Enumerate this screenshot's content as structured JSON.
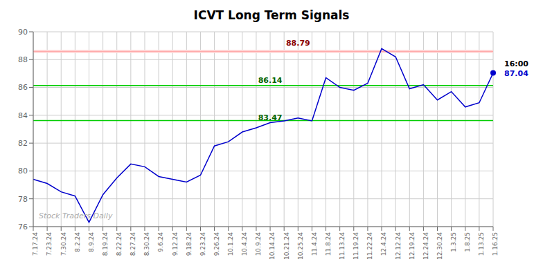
{
  "chart_data": {
    "type": "line",
    "title": "ICVT Long Term Signals",
    "categories": [
      "7.17.24",
      "7.23.24",
      "7.30.24",
      "8.2.24",
      "8.9.24",
      "8.19.24",
      "8.22.24",
      "8.27.24",
      "8.30.24",
      "9.6.24",
      "9.12.24",
      "9.18.24",
      "9.23.24",
      "9.26.24",
      "10.1.24",
      "10.4.24",
      "10.9.24",
      "10.14.24",
      "10.21.24",
      "10.25.24",
      "11.4.24",
      "11.8.24",
      "11.13.24",
      "11.19.24",
      "11.22.24",
      "12.4.24",
      "12.12.24",
      "12.19.24",
      "12.24.24",
      "12.30.24",
      "1.3.25",
      "1.8.25",
      "1.13.25",
      "1.16.25"
    ],
    "values": [
      79.4,
      79.1,
      78.5,
      78.2,
      76.3,
      78.3,
      79.5,
      80.5,
      80.3,
      79.6,
      79.4,
      79.2,
      79.7,
      81.8,
      82.1,
      82.8,
      83.1,
      83.47,
      83.6,
      83.8,
      83.6,
      86.7,
      86.0,
      85.8,
      86.3,
      88.79,
      88.2,
      85.9,
      86.2,
      85.1,
      85.7,
      84.6,
      84.9,
      87.04
    ],
    "color": "#0000cc",
    "marker": "last",
    "ylim": [
      76,
      90
    ],
    "yticks": [
      76,
      78,
      80,
      82,
      84,
      86,
      88,
      90
    ],
    "grid": true,
    "reference_bands": [
      {
        "range": [
          88.47,
          88.71
        ],
        "color": "#ffdddd"
      }
    ],
    "reference_lines": [
      {
        "value": 88.59,
        "color": "#ffaaaa"
      },
      {
        "value": 86.14,
        "color": "#00cc00"
      },
      {
        "value": 83.62,
        "color": "#00cc00"
      }
    ],
    "annotations": [
      {
        "text": "88.79",
        "x": "10.25.24",
        "y": 88.79,
        "color": "darkred"
      },
      {
        "text": "86.14",
        "x": "10.14.24",
        "y": 86.14,
        "color": "darkgreen"
      },
      {
        "text": "83.47",
        "x": "10.14.24",
        "y": 83.47,
        "color": "darkgreen"
      },
      {
        "text": "16:00",
        "x": "1.16.25",
        "y": 87.04,
        "color": "black"
      },
      {
        "text": "87.04",
        "x": "1.16.25",
        "y": 87.04,
        "color": "#0000cc"
      },
      {
        "text": "Stock Traders Daily",
        "color": "#aaaaaa"
      }
    ]
  }
}
